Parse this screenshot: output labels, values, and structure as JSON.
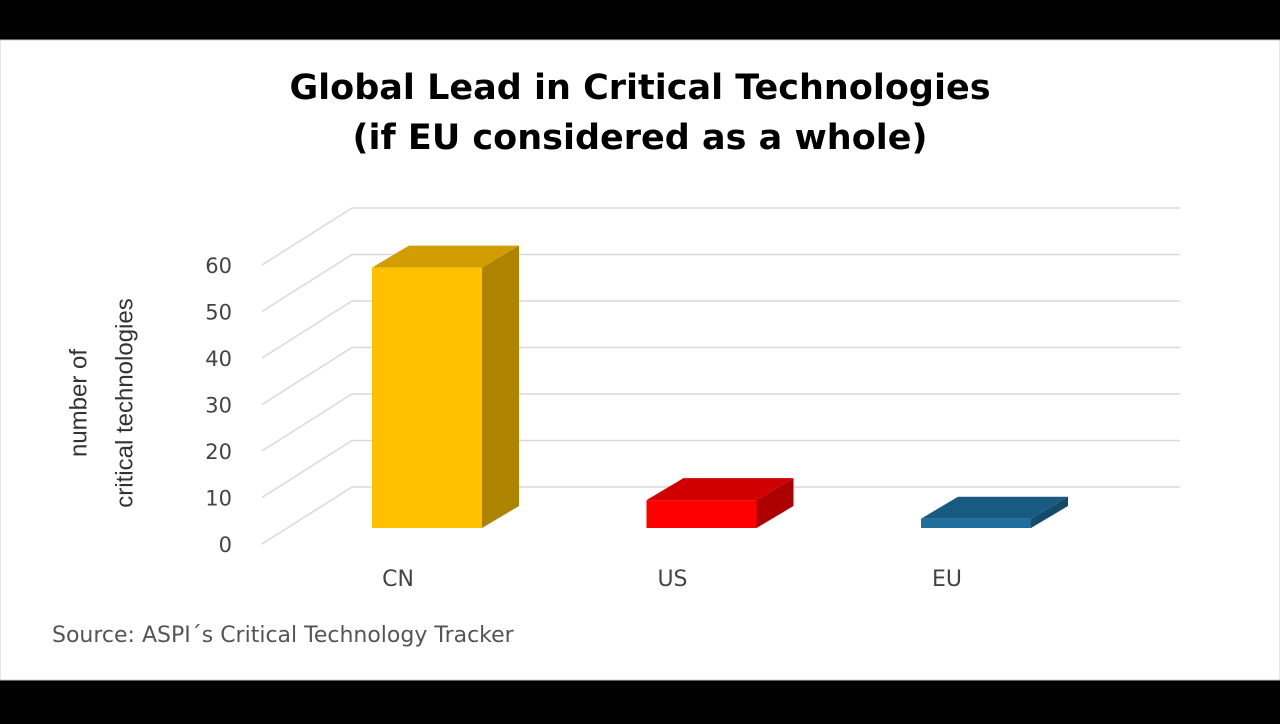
{
  "chart_data": {
    "type": "bar3d",
    "title": [
      "Global Lead in Critical Technologies",
      "(if EU considered as a whole)"
    ],
    "y_label": [
      "number of",
      "critical technologies"
    ],
    "categories": [
      "CN",
      "US",
      "EU"
    ],
    "values": [
      56,
      6,
      2
    ],
    "colors": [
      "#ffc000",
      "#ff0000",
      "#1f6f9c"
    ],
    "ylim": [
      0,
      60
    ],
    "yticks": [
      0,
      10,
      20,
      30,
      40,
      50,
      60
    ],
    "grid": true,
    "source": "Source: ASPI´s Critical Technology Tracker"
  }
}
